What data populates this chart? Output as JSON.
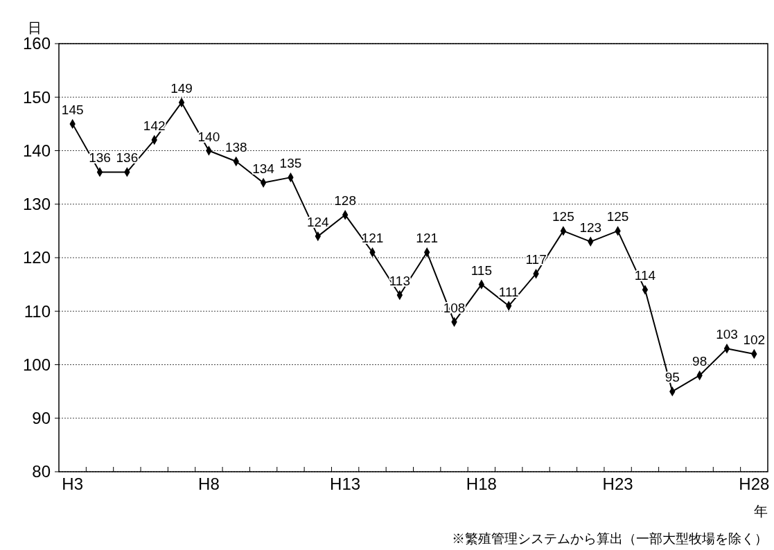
{
  "chart_data": {
    "type": "line",
    "ylabel": "日",
    "xlabel": "年",
    "categories": [
      "H3",
      null,
      null,
      null,
      null,
      "H8",
      null,
      null,
      null,
      null,
      "H13",
      null,
      null,
      null,
      null,
      "H18",
      null,
      null,
      null,
      null,
      "H23",
      null,
      null,
      null,
      null,
      "H28"
    ],
    "series": [
      {
        "color": "#000000",
        "values": [
          145,
          136,
          136,
          142,
          149,
          140,
          138,
          134,
          135,
          124,
          128,
          121,
          113,
          121,
          108,
          115,
          111,
          117,
          125,
          123,
          125,
          114,
          95,
          98,
          103,
          102
        ]
      }
    ],
    "ylim": [
      80,
      160
    ],
    "yticks": [
      80,
      90,
      100,
      110,
      120,
      130,
      140,
      150,
      160
    ],
    "grid": "y",
    "marker": "diamond",
    "line_style": "solid",
    "data_labels": true,
    "annotations": [
      "※繁殖管理システムから算出（一部大型牧場を除く）"
    ]
  }
}
